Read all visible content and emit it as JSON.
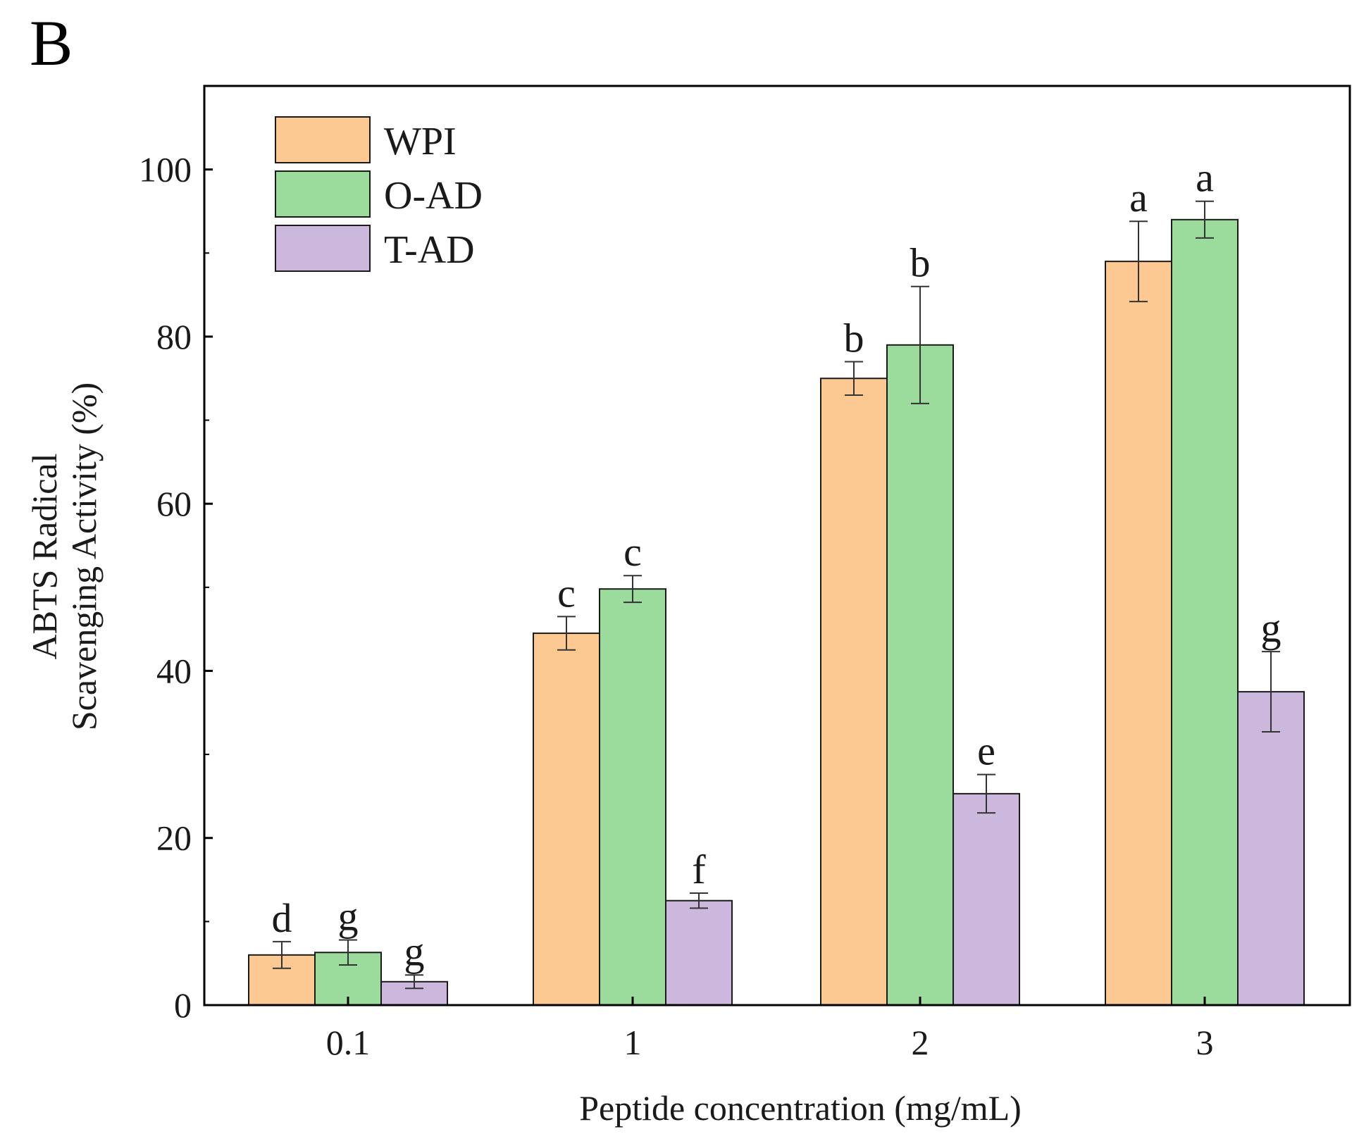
{
  "panel_label": "B",
  "colors": {
    "WPI": "#fdc993",
    "O-AD": "#9bdb9b",
    "T-AD": "#cbb8dc",
    "axis": "#000000",
    "bar_stroke": "#1a1a1a",
    "error_bar": "#333333"
  },
  "chart_data": {
    "type": "bar",
    "title": "",
    "xlabel": "Peptide concentration (mg/mL)",
    "ylabel_lines": [
      "ABTS Radical",
      "Scavenging Activity (%)"
    ],
    "ylim": [
      0,
      110
    ],
    "yticks": [
      0,
      20,
      40,
      60,
      80,
      100
    ],
    "ytick_labels": [
      "0",
      "20",
      "40",
      "60",
      "80",
      "100"
    ],
    "categories": [
      "0.1",
      "1",
      "2",
      "3"
    ],
    "grid": false,
    "legend_position": "top-left",
    "series": [
      {
        "name": "WPI",
        "values": [
          6,
          44.5,
          75,
          89
        ],
        "errors": [
          1.6,
          2,
          2,
          4.8
        ],
        "letters": [
          "d",
          "c",
          "b",
          "a"
        ]
      },
      {
        "name": "O-AD",
        "values": [
          6.3,
          49.8,
          79,
          94
        ],
        "errors": [
          1.5,
          1.6,
          7,
          2.2
        ],
        "letters": [
          "g",
          "c",
          "b",
          "a"
        ]
      },
      {
        "name": "T-AD",
        "values": [
          2.8,
          12.5,
          25.3,
          37.5
        ],
        "errors": [
          0.8,
          0.9,
          2.3,
          4.8
        ],
        "letters": [
          "g",
          "f",
          "e",
          "g"
        ]
      }
    ]
  }
}
